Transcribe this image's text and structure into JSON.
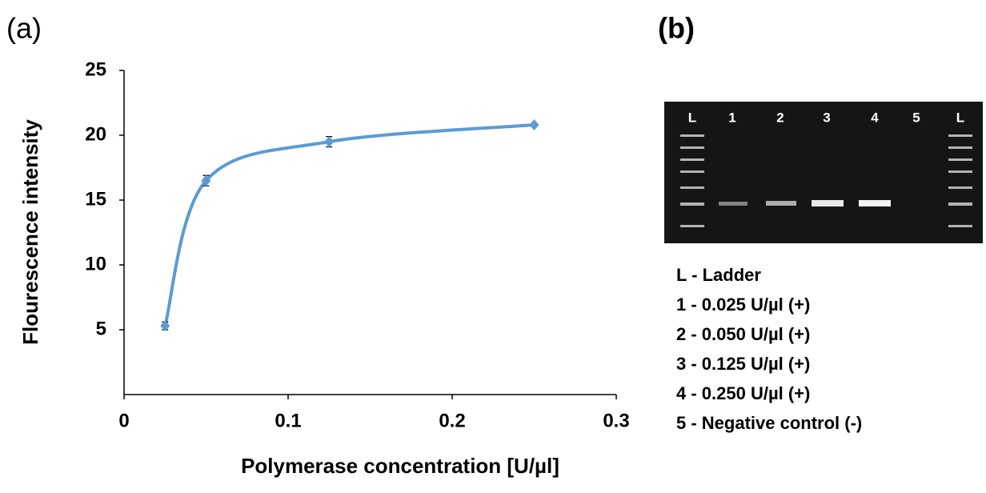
{
  "chart_data": {
    "type": "line",
    "panel_label": "(a)",
    "x": [
      0.025,
      0.05,
      0.125,
      0.25
    ],
    "values": [
      5.3,
      16.5,
      19.5,
      20.8
    ],
    "errors": [
      0.3,
      0.4,
      0.4,
      0.1
    ],
    "color": "#5b9bd5",
    "xlim": [
      0,
      0.3
    ],
    "xticks": [
      0,
      0.1,
      0.2,
      0.3
    ],
    "ylim": [
      0,
      25
    ],
    "yticks": [
      5,
      10,
      15,
      20,
      25
    ],
    "x_label": "Polymerase concentration [U/µl]",
    "y_label": "Flourescence intensity"
  },
  "gel": {
    "panel_label": "(b)",
    "lanes": [
      "L",
      "1",
      "2",
      "3",
      "4",
      "5",
      "L"
    ],
    "legend": [
      "L - Ladder",
      "1 - 0.025 U/µl (+)",
      "2 - 0.050 U/µl (+)",
      "3 - 0.125 U/µl (+)",
      "4 - 0.250 U/µl (+)",
      "5 - Negative control (-)"
    ]
  }
}
